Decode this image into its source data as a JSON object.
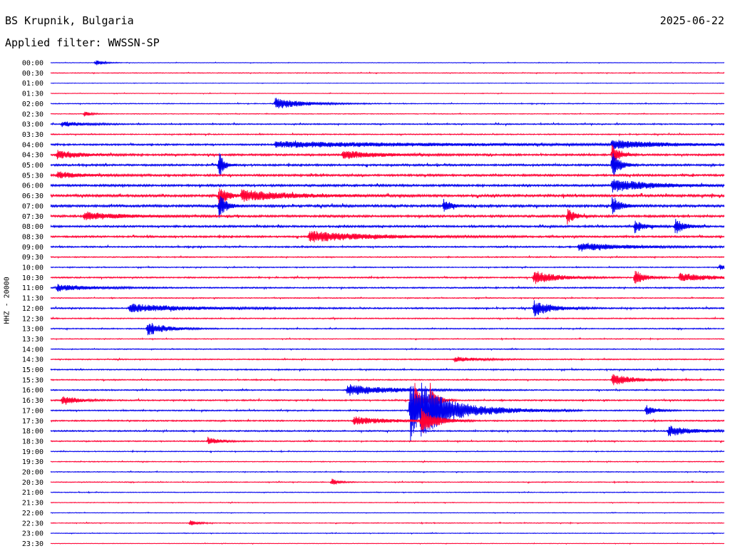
{
  "header": {
    "station": "BS Krupnik, Bulgaria",
    "date": "2025-06-22",
    "filter": "Applied filter: WWSSN-SP"
  },
  "colors": {
    "even_trace": "#0000ee",
    "odd_trace": "#ff0033",
    "text": "#000000"
  },
  "chart_data": {
    "type": "line",
    "title": "BS Krupnik, Bulgaria",
    "subtitle": "Applied filter: WWSSN-SP",
    "ylabel": "HHZ - 20000",
    "xlabel": "",
    "grid": false,
    "legend": "none",
    "row_interval_minutes": 30,
    "series_colors_alternate": [
      "#0000ee",
      "#ff0033"
    ],
    "rows": [
      "00:00",
      "00:30",
      "01:00",
      "01:30",
      "02:00",
      "02:30",
      "03:00",
      "03:30",
      "04:00",
      "04:30",
      "05:00",
      "05:30",
      "06:00",
      "06:30",
      "07:00",
      "07:30",
      "08:00",
      "08:30",
      "09:00",
      "09:30",
      "10:00",
      "10:30",
      "11:00",
      "11:30",
      "12:00",
      "12:30",
      "13:00",
      "13:30",
      "14:00",
      "14:30",
      "15:00",
      "15:30",
      "16:00",
      "16:30",
      "17:00",
      "17:30",
      "18:00",
      "18:30",
      "19:00",
      "19:30",
      "20:00",
      "20:30",
      "21:00",
      "21:30",
      "22:00",
      "22:30",
      "23:00",
      "23:30"
    ],
    "noise_level": [
      0.25,
      0.3,
      0.2,
      0.25,
      0.35,
      0.3,
      0.5,
      0.45,
      0.7,
      0.8,
      0.8,
      0.85,
      0.9,
      1.0,
      1.0,
      0.9,
      0.8,
      0.75,
      0.6,
      0.45,
      0.4,
      0.55,
      0.55,
      0.4,
      0.6,
      0.45,
      0.45,
      0.35,
      0.4,
      0.45,
      0.5,
      0.45,
      0.5,
      0.55,
      0.5,
      0.55,
      0.55,
      0.45,
      0.35,
      0.35,
      0.35,
      0.35,
      0.3,
      0.3,
      0.25,
      0.3,
      0.3,
      0.25
    ],
    "events": [
      {
        "row": "00:00",
        "minute": 2.0,
        "amplitude": 5,
        "duration_min": 0.3
      },
      {
        "row": "02:00",
        "minute": 10.0,
        "amplitude": 8,
        "duration_min": 1.2
      },
      {
        "row": "02:30",
        "minute": 1.5,
        "amplitude": 4,
        "duration_min": 0.3
      },
      {
        "row": "03:00",
        "minute": 0.5,
        "amplitude": 4,
        "duration_min": 1.0
      },
      {
        "row": "04:00",
        "minute": 10.0,
        "amplitude": 4,
        "duration_min": 8.0
      },
      {
        "row": "04:00",
        "minute": 25.0,
        "amplitude": 6,
        "duration_min": 2.0
      },
      {
        "row": "04:30",
        "minute": 0.3,
        "amplitude": 6,
        "duration_min": 1.0
      },
      {
        "row": "04:30",
        "minute": 13.0,
        "amplitude": 6,
        "duration_min": 1.5
      },
      {
        "row": "04:30",
        "minute": 25.0,
        "amplitude": 16,
        "duration_min": 0.3
      },
      {
        "row": "05:00",
        "minute": 7.5,
        "amplitude": 22,
        "duration_min": 0.2
      },
      {
        "row": "05:00",
        "minute": 25.0,
        "amplitude": 22,
        "duration_min": 0.3
      },
      {
        "row": "05:30",
        "minute": 0.3,
        "amplitude": 5,
        "duration_min": 1.0
      },
      {
        "row": "06:00",
        "minute": 25.0,
        "amplitude": 10,
        "duration_min": 1.5
      },
      {
        "row": "06:30",
        "minute": 7.5,
        "amplitude": 20,
        "duration_min": 0.3
      },
      {
        "row": "06:30",
        "minute": 8.5,
        "amplitude": 8,
        "duration_min": 2.0
      },
      {
        "row": "07:00",
        "minute": 7.5,
        "amplitude": 18,
        "duration_min": 0.3
      },
      {
        "row": "07:00",
        "minute": 17.5,
        "amplitude": 10,
        "duration_min": 0.3
      },
      {
        "row": "07:00",
        "minute": 25.0,
        "amplitude": 12,
        "duration_min": 0.4
      },
      {
        "row": "07:30",
        "minute": 1.5,
        "amplitude": 6,
        "duration_min": 1.5
      },
      {
        "row": "07:30",
        "minute": 23.0,
        "amplitude": 12,
        "duration_min": 0.3
      },
      {
        "row": "08:00",
        "minute": 26.0,
        "amplitude": 10,
        "duration_min": 0.4
      },
      {
        "row": "08:00",
        "minute": 27.8,
        "amplitude": 12,
        "duration_min": 0.4
      },
      {
        "row": "08:30",
        "minute": 11.5,
        "amplitude": 8,
        "duration_min": 2.5
      },
      {
        "row": "09:00",
        "minute": 23.5,
        "amplitude": 6,
        "duration_min": 2.0
      },
      {
        "row": "10:00",
        "minute": 29.8,
        "amplitude": 4,
        "duration_min": 0.3
      },
      {
        "row": "10:30",
        "minute": 21.5,
        "amplitude": 10,
        "duration_min": 1.0
      },
      {
        "row": "10:30",
        "minute": 26.0,
        "amplitude": 12,
        "duration_min": 0.4
      },
      {
        "row": "10:30",
        "minute": 28.0,
        "amplitude": 6,
        "duration_min": 1.5
      },
      {
        "row": "11:00",
        "minute": 0.3,
        "amplitude": 5,
        "duration_min": 1.5
      },
      {
        "row": "12:00",
        "minute": 3.5,
        "amplitude": 6,
        "duration_min": 2.5
      },
      {
        "row": "12:00",
        "minute": 21.5,
        "amplitude": 12,
        "duration_min": 0.8
      },
      {
        "row": "13:00",
        "minute": 4.3,
        "amplitude": 10,
        "duration_min": 0.8
      },
      {
        "row": "14:30",
        "minute": 18.0,
        "amplitude": 4,
        "duration_min": 1.0
      },
      {
        "row": "15:30",
        "minute": 25.0,
        "amplitude": 8,
        "duration_min": 1.0
      },
      {
        "row": "16:00",
        "minute": 13.2,
        "amplitude": 8,
        "duration_min": 2.0
      },
      {
        "row": "16:30",
        "minute": 0.5,
        "amplitude": 8,
        "duration_min": 0.6
      },
      {
        "row": "16:30",
        "minute": 16.2,
        "amplitude": 30,
        "duration_min": 0.3
      },
      {
        "row": "16:30",
        "minute": 16.9,
        "amplitude": 24,
        "duration_min": 0.3
      },
      {
        "row": "17:00",
        "minute": 16.0,
        "amplitude": 48,
        "duration_min": 0.5
      },
      {
        "row": "17:00",
        "minute": 16.5,
        "amplitude": 30,
        "duration_min": 1.8
      },
      {
        "row": "17:00",
        "minute": 26.5,
        "amplitude": 8,
        "duration_min": 0.4
      },
      {
        "row": "17:30",
        "minute": 13.5,
        "amplitude": 6,
        "duration_min": 1.5
      },
      {
        "row": "17:30",
        "minute": 16.5,
        "amplitude": 20,
        "duration_min": 0.6
      },
      {
        "row": "18:00",
        "minute": 27.5,
        "amplitude": 8,
        "duration_min": 1.0
      },
      {
        "row": "18:30",
        "minute": 7.0,
        "amplitude": 6,
        "duration_min": 0.5
      },
      {
        "row": "20:30",
        "minute": 12.5,
        "amplitude": 6,
        "duration_min": 0.3
      },
      {
        "row": "22:30",
        "minute": 6.2,
        "amplitude": 5,
        "duration_min": 0.3
      }
    ]
  }
}
